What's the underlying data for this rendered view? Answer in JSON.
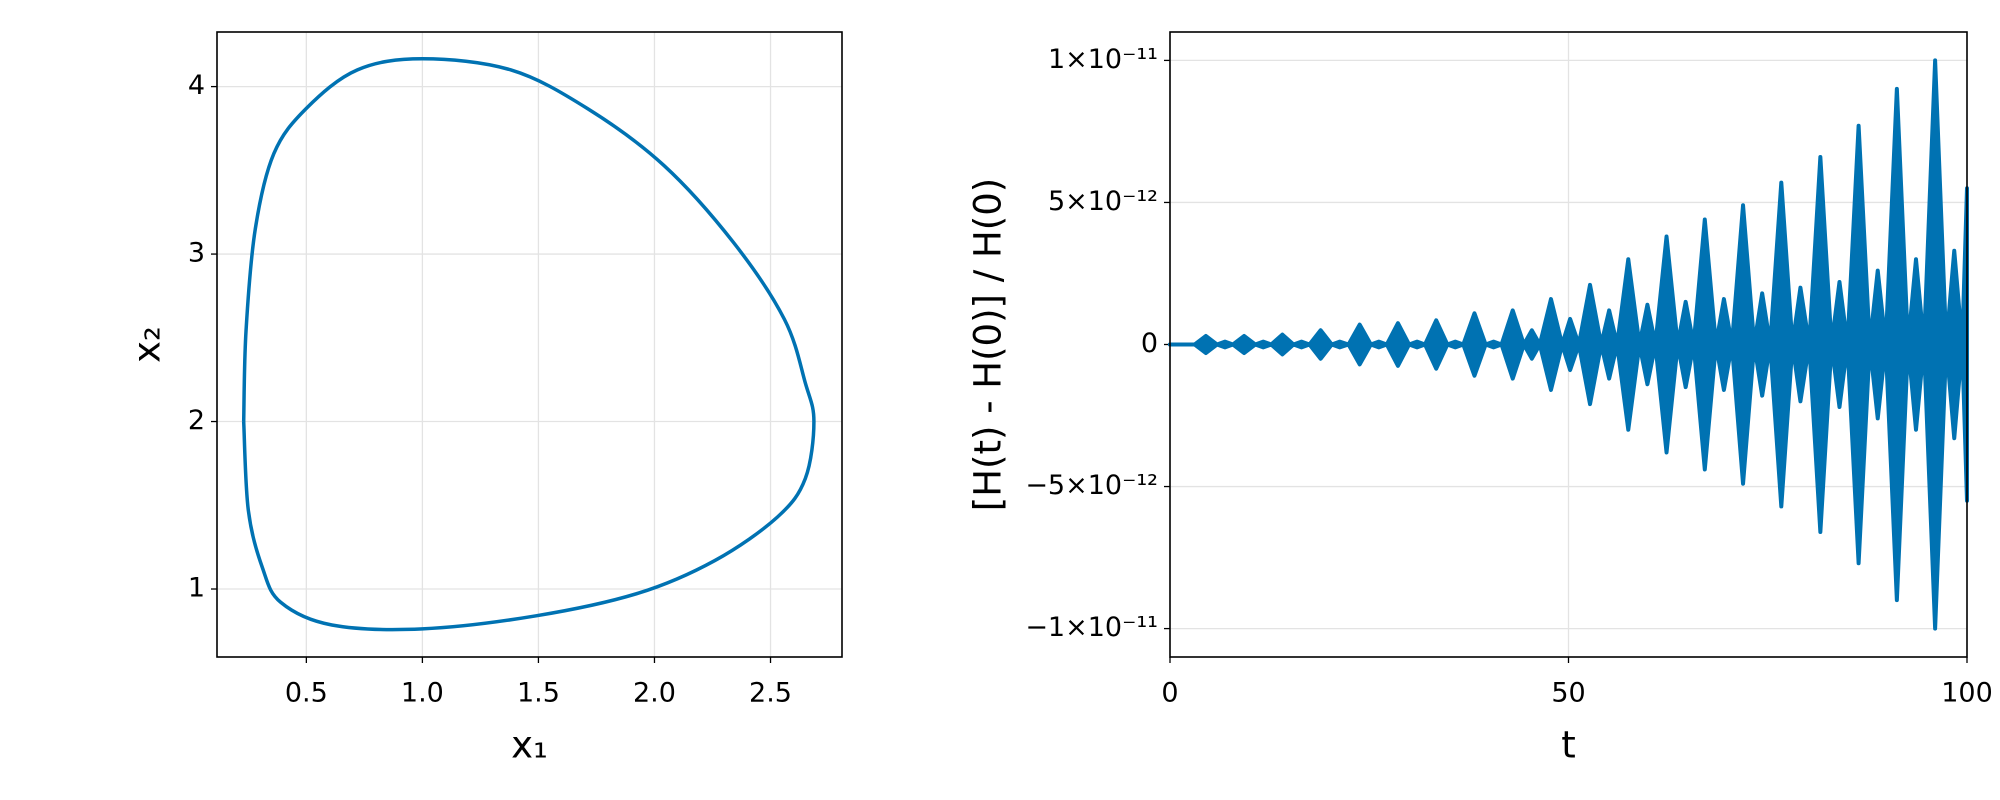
{
  "chart_data": [
    {
      "type": "line",
      "xlabel": "x₁",
      "ylabel": "x₂",
      "color": "#0072b2",
      "grid": true,
      "x": [
        0.23,
        0.24,
        0.28,
        0.36,
        0.5,
        0.72,
        1.0,
        1.38,
        1.71,
        2.04,
        2.34,
        2.56,
        2.65,
        2.687,
        2.65,
        2.53,
        2.26,
        1.93,
        1.49,
        1.0,
        0.61,
        0.39,
        0.31,
        0.25,
        0.23
      ],
      "values": [
        2.0,
        2.54,
        3.15,
        3.6,
        3.87,
        4.1,
        4.166,
        4.1,
        3.87,
        3.53,
        3.07,
        2.61,
        2.23,
        2.0,
        1.66,
        1.43,
        1.17,
        0.975,
        0.84,
        0.762,
        0.785,
        0.92,
        1.13,
        1.47,
        2.0
      ],
      "xlim": [
        0.115,
        2.808
      ],
      "ylim": [
        0.594,
        4.326
      ],
      "xticks": [
        0.5,
        {
          "value": 1.0,
          "label": "1.0"
        },
        1.5,
        {
          "value": 2.0,
          "label": "2.0"
        },
        2.5
      ],
      "yticks": [
        1,
        2,
        3,
        4
      ]
    },
    {
      "type": "area",
      "xlabel": "t",
      "ylabel": "[H(t) - H(0)] / H(0)",
      "grid": true,
      "x": [
        0,
        3.1,
        4.5,
        5.9,
        6.9,
        7.9,
        9.3,
        10.7,
        11.7,
        12.7,
        14.1,
        15.5,
        16.5,
        17.5,
        18.9,
        20.3,
        21.3,
        22.4,
        23.8,
        25.2,
        26.2,
        27.2,
        28.6,
        30.0,
        31.0,
        32.0,
        33.4,
        34.8,
        35.8,
        36.8,
        38.2,
        39.6,
        40.6,
        41.6,
        43.0,
        44.4,
        45.4,
        46.4,
        47.8,
        49.2,
        50.2,
        51.3,
        52.7,
        54.1,
        55.1,
        56.1,
        57.5,
        58.9,
        59.9,
        60.9,
        62.3,
        63.7,
        64.7,
        65.7,
        67.1,
        68.5,
        69.5,
        70.5,
        71.9,
        73.3,
        74.3,
        75.3,
        76.7,
        78.1,
        79.1,
        80.2,
        81.6,
        83.0,
        84.0,
        85.0,
        86.4,
        87.8,
        88.8,
        89.8,
        91.2,
        92.6,
        93.6,
        94.6,
        96.0,
        97.4,
        98.4,
        99.4,
        100
      ],
      "series": [
        {
          "color": "#0072b2",
          "values": [
            0,
            0,
            3e-13,
            0,
            1e-13,
            0,
            3e-13,
            0,
            1e-13,
            0,
            3.5e-13,
            0,
            1e-13,
            0,
            5e-13,
            0,
            1e-13,
            0,
            7e-13,
            0,
            1e-13,
            0,
            7.5e-13,
            0,
            1e-13,
            0,
            8.5e-13,
            0,
            1e-13,
            0,
            1.1e-12,
            0,
            1e-13,
            0,
            1.2e-12,
            0,
            5e-13,
            0,
            1.6e-12,
            0,
            9e-13,
            0,
            2.1e-12,
            0,
            1.2e-12,
            0,
            3e-12,
            0,
            1.4e-12,
            0,
            3.8e-12,
            0,
            1.5e-12,
            0,
            4.4e-12,
            0,
            1.6e-12,
            0,
            4.9e-12,
            0,
            1.8e-12,
            0,
            5.7e-12,
            0,
            2e-12,
            0,
            6.6e-12,
            0,
            2.2e-12,
            0,
            7.7e-12,
            0,
            2.6e-12,
            0,
            9e-12,
            0,
            3e-12,
            0,
            1e-11,
            0,
            3.3e-12,
            0,
            5.5e-12
          ]
        },
        {
          "color": "#0072b2",
          "values": [
            0,
            0,
            -3e-13,
            0,
            -1e-13,
            0,
            -3e-13,
            0,
            -1e-13,
            0,
            -3.5e-13,
            0,
            -1e-13,
            0,
            -5e-13,
            0,
            -1e-13,
            0,
            -7e-13,
            0,
            -1e-13,
            0,
            -7.5e-13,
            0,
            -1e-13,
            0,
            -8.5e-13,
            0,
            -1e-13,
            0,
            -1.1e-12,
            0,
            -1e-13,
            0,
            -1.2e-12,
            0,
            -5e-13,
            0,
            -1.6e-12,
            0,
            -9e-13,
            0,
            -2.1e-12,
            0,
            -1.2e-12,
            0,
            -3e-12,
            0,
            -1.4e-12,
            0,
            -3.8e-12,
            0,
            -1.5e-12,
            0,
            -4.4e-12,
            0,
            -1.6e-12,
            0,
            -4.9e-12,
            0,
            -1.8e-12,
            0,
            -5.7e-12,
            0,
            -2e-12,
            0,
            -6.6e-12,
            0,
            -2.2e-12,
            0,
            -7.7e-12,
            0,
            -2.6e-12,
            0,
            -9e-12,
            0,
            -3e-12,
            0,
            -1e-11,
            0,
            -3.3e-12,
            0,
            -5.5e-12
          ]
        }
      ],
      "xlim": [
        0,
        100
      ],
      "ylim": [
        -1.1e-11,
        1.1e-11
      ],
      "xticks": [
        0,
        50,
        100
      ],
      "yticks": [
        {
          "value": -1e-11,
          "label": "−1×10⁻¹¹"
        },
        {
          "value": -5e-12,
          "label": "−5×10⁻¹²"
        },
        0,
        {
          "value": 5e-12,
          "label": "5×10⁻¹²"
        },
        {
          "value": 1e-11,
          "label": "1×10⁻¹¹"
        }
      ]
    }
  ]
}
